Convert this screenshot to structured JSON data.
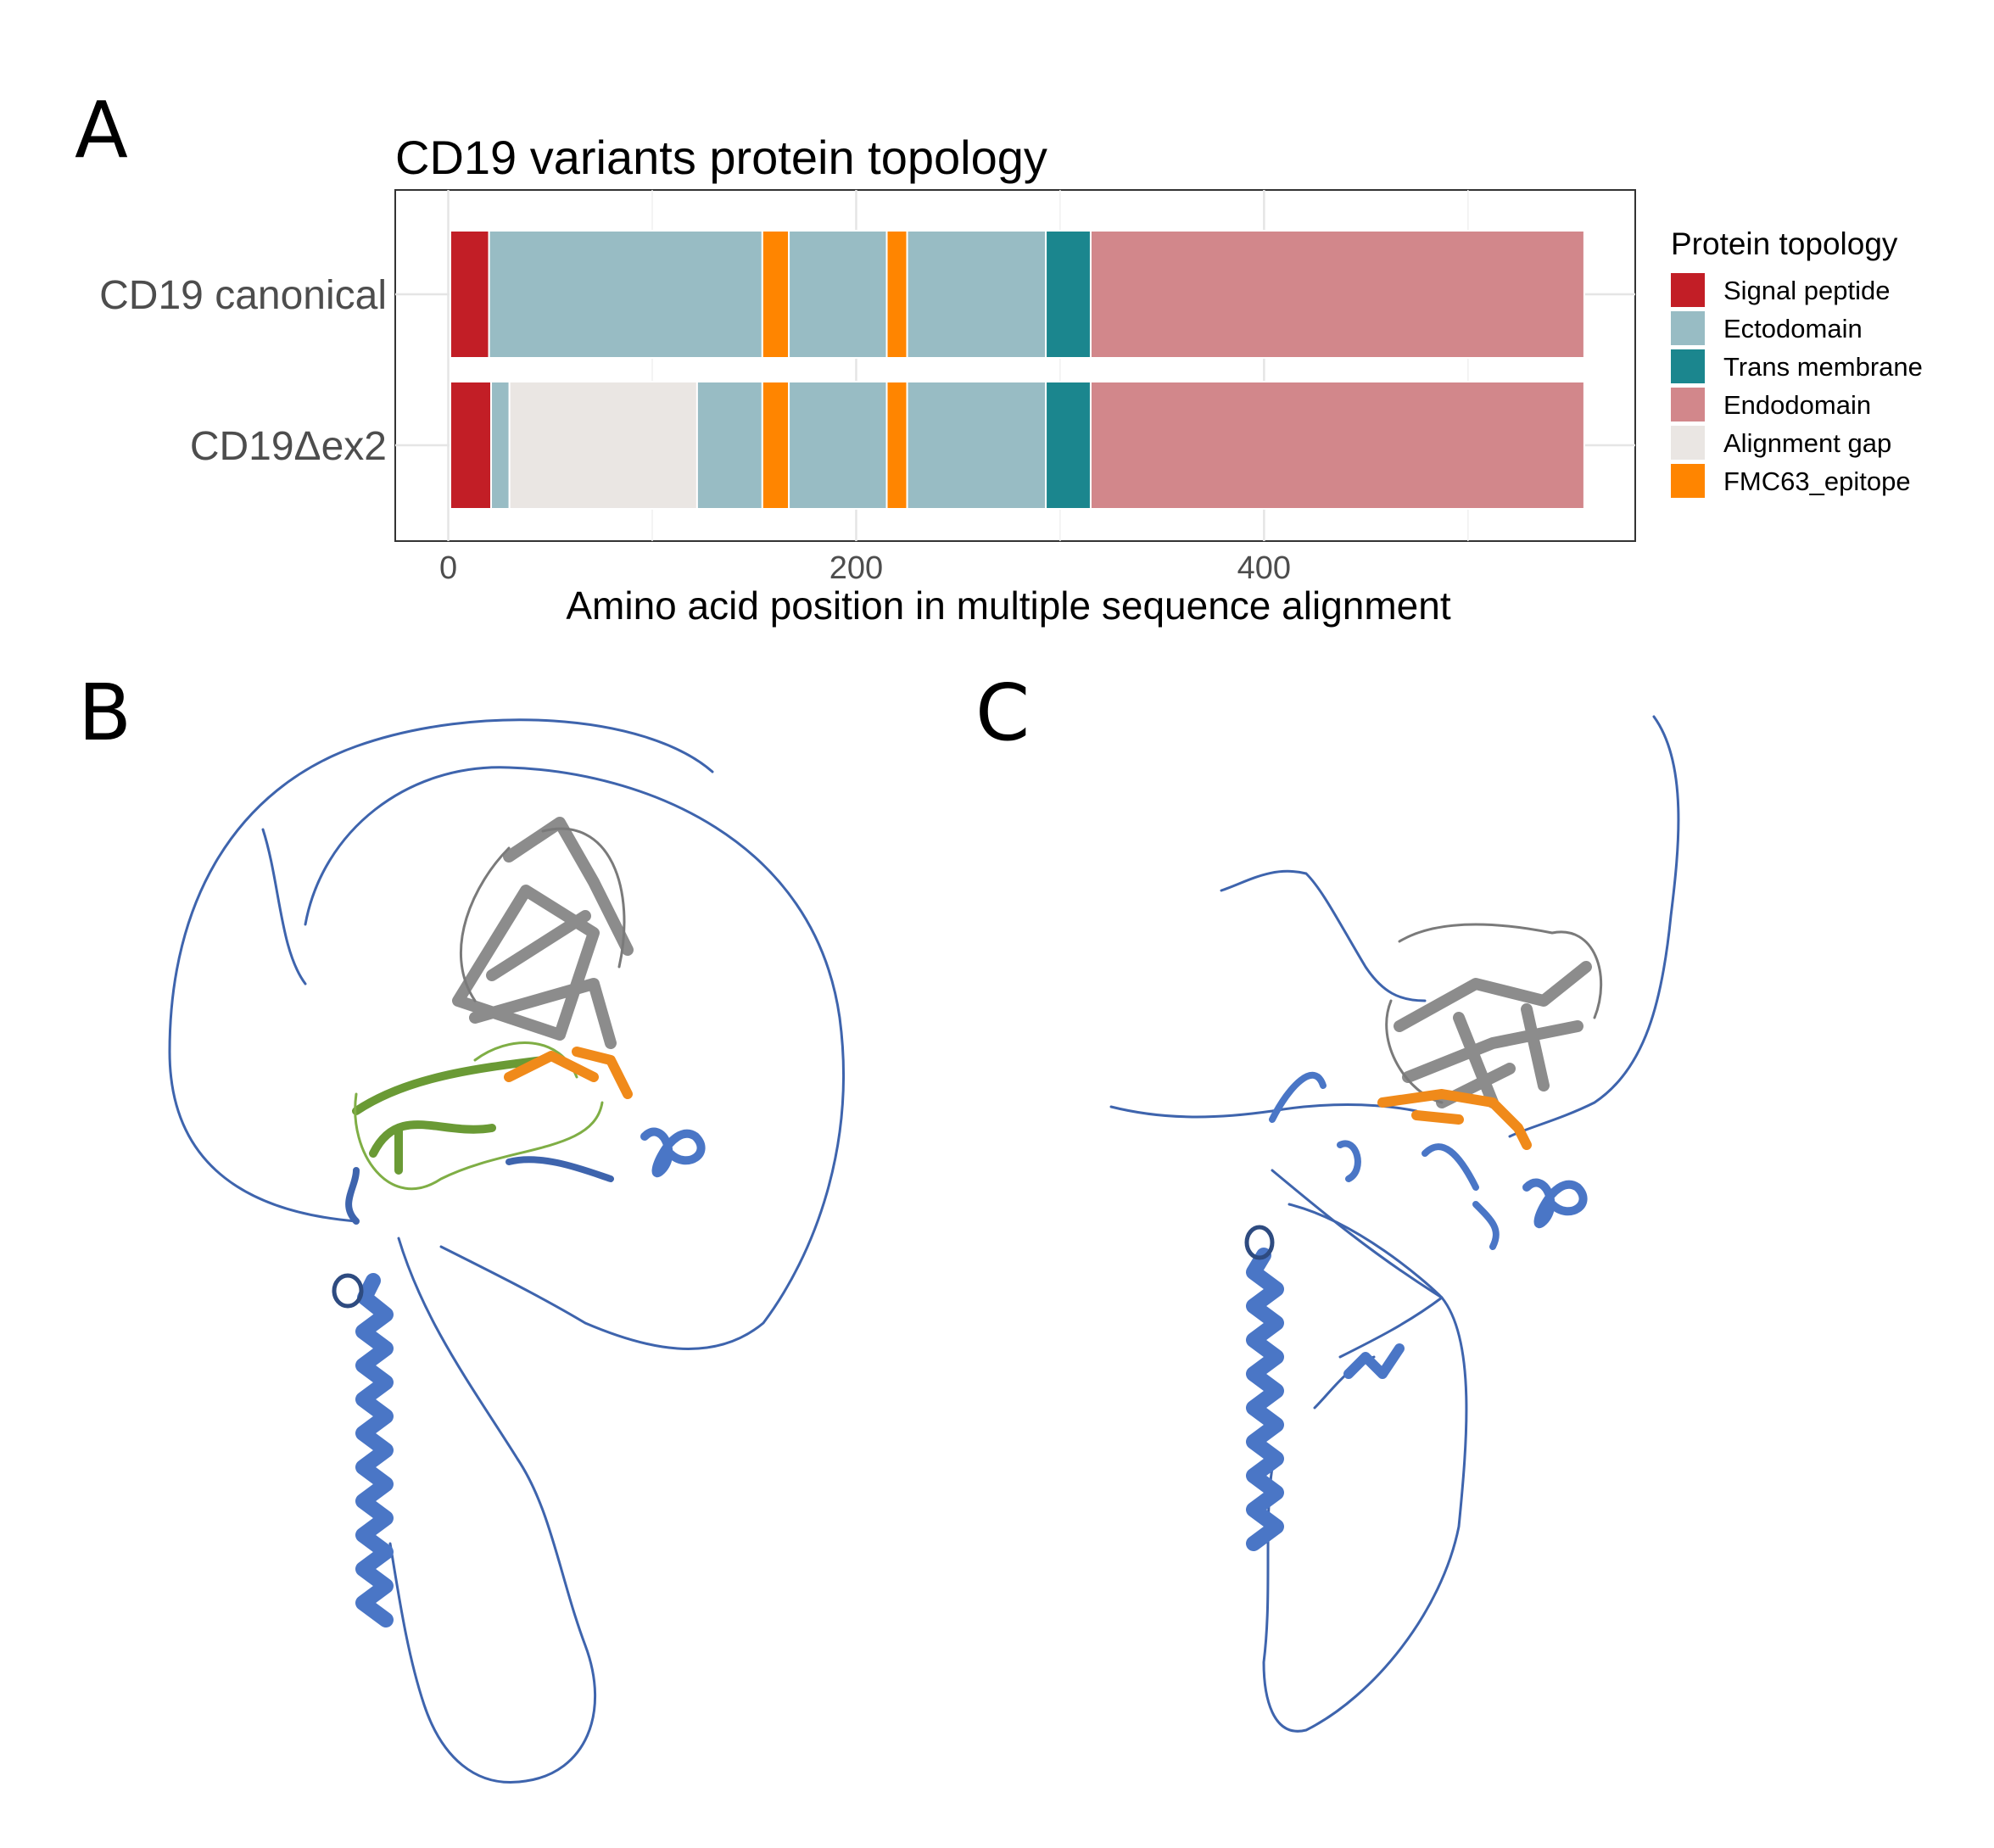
{
  "panels": {
    "a": "A",
    "b": "B",
    "c": "C"
  },
  "chart_data": {
    "type": "bar",
    "orientation": "horizontal-stacked",
    "title": "CD19 variants protein topology",
    "xlabel": "Amino acid position in multiple sequence alignment",
    "ylabel": "",
    "xlim": [
      -26,
      582
    ],
    "xticks": [
      0,
      200,
      400
    ],
    "grid": true,
    "legend_position": "right",
    "legend_title": "Protein topology",
    "legend": [
      {
        "name": "Signal peptide",
        "color": "#C21E26"
      },
      {
        "name": "Ectodomain",
        "color": "#98BCC4"
      },
      {
        "name": "Trans membrane",
        "color": "#1B868E"
      },
      {
        "name": "Endodomain",
        "color": "#D2878B"
      },
      {
        "name": "Alignment gap",
        "color": "#EAE6E3"
      },
      {
        "name": "FMC63_epitope",
        "color": "#FF8500"
      }
    ],
    "categories": [
      "CD19 canonical",
      "CD19Δex2"
    ],
    "rows": [
      {
        "label": "CD19 canonical",
        "segments": [
          {
            "type": "Signal peptide",
            "start": 1,
            "end": 20
          },
          {
            "type": "Ectodomain",
            "start": 20,
            "end": 154
          },
          {
            "type": "FMC63_epitope",
            "start": 154,
            "end": 167
          },
          {
            "type": "Ectodomain",
            "start": 167,
            "end": 215
          },
          {
            "type": "FMC63_epitope",
            "start": 215,
            "end": 225
          },
          {
            "type": "Ectodomain",
            "start": 225,
            "end": 293
          },
          {
            "type": "Trans membrane",
            "start": 293,
            "end": 315
          },
          {
            "type": "Endodomain",
            "start": 315,
            "end": 557
          }
        ]
      },
      {
        "label": "CD19Δex2",
        "segments": [
          {
            "type": "Signal peptide",
            "start": 1,
            "end": 21
          },
          {
            "type": "Ectodomain",
            "start": 21,
            "end": 30
          },
          {
            "type": "Alignment gap",
            "start": 30,
            "end": 122
          },
          {
            "type": "Ectodomain",
            "start": 122,
            "end": 154
          },
          {
            "type": "FMC63_epitope",
            "start": 154,
            "end": 167
          },
          {
            "type": "Ectodomain",
            "start": 167,
            "end": 215
          },
          {
            "type": "FMC63_epitope",
            "start": 215,
            "end": 225
          },
          {
            "type": "Ectodomain",
            "start": 225,
            "end": 293
          },
          {
            "type": "Trans membrane",
            "start": 293,
            "end": 315
          },
          {
            "type": "Endodomain",
            "start": 315,
            "end": 557
          }
        ]
      }
    ]
  },
  "structure_colors": {
    "backbone": "#3E64AD",
    "helix": "#4A76C6",
    "core": "#8C8C8C",
    "epitope": "#F08A1A",
    "deleted_region": "#6A9A35"
  }
}
